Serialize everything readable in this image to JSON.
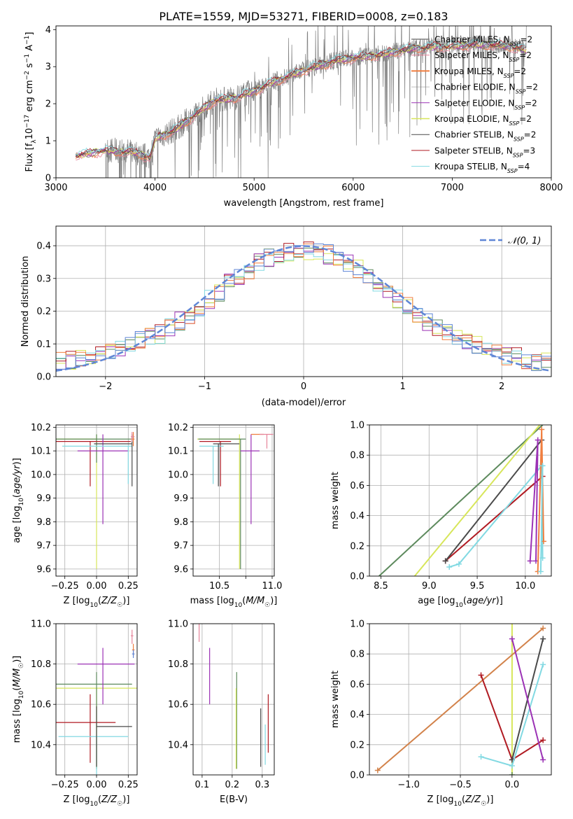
{
  "title": "PLATE=1559, MJD=53271, FIBERID=0008, z=0.183",
  "colors": {
    "gray": "#808080",
    "orange": "#f07e3f",
    "pink": "#e6849a",
    "purple": "#9b32b5",
    "yellowgreen": "#d7e65a",
    "darkgray": "#4a4a4a",
    "darkred": "#b01a22",
    "cyan": "#82d9e2",
    "green": "#5d8a5d",
    "blue": "#5f86d6",
    "darkorange": "#d2824a"
  },
  "chart_data": [
    {
      "id": "spectrum",
      "type": "line",
      "xlabel": "wavelength [Angstrom, rest frame]",
      "ylabel": "Flux [f_λ 10^-17 erg cm^-2 s^-1 A^-1]",
      "xlim": [
        3000,
        8000
      ],
      "ylim": [
        0,
        4.1
      ],
      "xticks": [
        3000,
        4000,
        5000,
        6000,
        7000,
        8000
      ],
      "yticks": [
        0,
        1,
        2,
        3,
        4
      ],
      "grid": false,
      "legend_position": "right",
      "data_trend": {
        "x": [
          3200,
          3500,
          3800,
          3950,
          4000,
          4200,
          4400,
          4600,
          4800,
          5000,
          5200,
          5400,
          5600,
          5800,
          6000,
          6200,
          6400,
          6600,
          6800,
          7000,
          7200,
          7400,
          7600,
          7750
        ],
        "y": [
          0.6,
          0.75,
          0.7,
          0.55,
          1.05,
          1.3,
          1.7,
          2.1,
          2.15,
          2.35,
          2.6,
          2.8,
          3.0,
          3.15,
          3.25,
          3.3,
          3.4,
          3.5,
          3.55,
          3.55,
          3.6,
          3.6,
          3.55,
          3.45
        ]
      },
      "series": [
        {
          "name": "Chabrier MILES",
          "nssp": "2",
          "color": "#808080",
          "width": 1.5
        },
        {
          "name": "Salpeter MILES",
          "nssp": "2",
          "color": "#e6849a",
          "width": 1
        },
        {
          "name": "Kroupa MILES",
          "nssp": "2",
          "color": "#f07e3f",
          "width": 2
        },
        {
          "name": "Chabrier ELODIE",
          "nssp": "2",
          "color": "#808080",
          "width": 0.5
        },
        {
          "name": "Salpeter ELODIE",
          "nssp": "2",
          "color": "#9b32b5",
          "width": 1
        },
        {
          "name": "Kroupa ELODIE",
          "nssp": "2",
          "color": "#d7e65a",
          "width": 1.5
        },
        {
          "name": "Chabrier STELIB",
          "nssp": "2",
          "color": "#4a4a4a",
          "width": 1
        },
        {
          "name": "Salpeter STELIB",
          "nssp": "3",
          "color": "#b01a22",
          "width": 1
        },
        {
          "name": "Kroupa STELIB",
          "nssp": "4",
          "color": "#82d9e2",
          "width": 1
        }
      ]
    },
    {
      "id": "residual-histogram",
      "type": "line",
      "xlabel": "(data-model)/error",
      "ylabel": "Normed distribution",
      "xlim": [
        -2.5,
        2.5
      ],
      "ylim": [
        0,
        0.46
      ],
      "xticks": [
        -2,
        -1,
        0,
        1,
        2
      ],
      "yticks": [
        0.0,
        0.1,
        0.2,
        0.3,
        0.4
      ],
      "grid": true,
      "legend_position": "top-right",
      "legend_label": "𝒩(0, 1)",
      "gaussian": {
        "mean": 0,
        "sigma": 1,
        "color": "#5f86d6"
      },
      "hist_bin_edges_from": -2.5,
      "hist_bin_width": 0.1,
      "hist_series_colors": [
        "#5d8a5d",
        "#d7e65a",
        "#9b32b5",
        "#b01a22",
        "#82d9e2",
        "#f07e3f",
        "#5f86d6"
      ]
    },
    {
      "id": "age-vs-z",
      "type": "scatter",
      "xlabel": "Z [log10(Z/Z☉)]",
      "ylabel": "age  [log10(age/yr)]",
      "xlim": [
        -0.32,
        0.32
      ],
      "ylim": [
        9.57,
        10.21
      ],
      "xticks": [
        -0.25,
        0.0,
        0.25
      ],
      "yticks": [
        9.6,
        9.7,
        9.8,
        9.9,
        10.0,
        10.1,
        10.2
      ],
      "grid": true,
      "points": [
        {
          "x": 0.0,
          "y": 10.15,
          "xerr": [
            0.32,
            0.0
          ],
          "yerr": [
            0.55,
            0.02
          ],
          "color": "#d7e65a"
        },
        {
          "x": 0.0,
          "y": 10.15,
          "xerr": [
            0.32,
            0.28
          ],
          "yerr": [
            0.1,
            0.02
          ],
          "color": "#5d8a5d"
        },
        {
          "x": -0.05,
          "y": 10.14,
          "xerr": [
            0.27,
            0.32
          ],
          "yerr": [
            0.19,
            0.0
          ],
          "color": "#b01a22"
        },
        {
          "x": 0.05,
          "y": 10.1,
          "xerr": [
            0.2,
            0.2
          ],
          "yerr": [
            0.31,
            0.07
          ],
          "color": "#9b32b5"
        },
        {
          "x": 0.25,
          "y": 10.12,
          "xerr": [
            0.52,
            0.03
          ],
          "yerr": [
            0.16,
            0.0
          ],
          "color": "#82d9e2"
        },
        {
          "x": 0.28,
          "y": 10.13,
          "xerr": [
            0.3,
            0.0
          ],
          "yerr": [
            0.18,
            0.04
          ],
          "color": "#4a4a4a"
        },
        {
          "x": 0.29,
          "y": 10.15,
          "xerr": [
            0.02,
            0.01
          ],
          "yerr": [
            0.03,
            0.03
          ],
          "color": "#f07e3f"
        },
        {
          "x": 0.28,
          "y": 10.16,
          "xerr": [
            0.01,
            0.02
          ],
          "yerr": [
            0.02,
            0.02
          ],
          "color": "#e6849a"
        }
      ]
    },
    {
      "id": "age-vs-mass",
      "type": "scatter",
      "xlabel": "mass [log10(M/M☉)]",
      "ylabel": "",
      "xlim": [
        10.25,
        11.02
      ],
      "ylim": [
        9.57,
        10.21
      ],
      "xticks": [
        10.5,
        10.75,
        11.0
      ],
      "xtick_labels": [
        "10.5",
        "",
        "11.0"
      ],
      "yticks": [
        9.6,
        9.7,
        9.8,
        9.9,
        10.0,
        10.1,
        10.2
      ],
      "grid": true,
      "points": [
        {
          "x": 10.69,
          "y": 10.15,
          "xerr": [
            0.4,
            0.0
          ],
          "yerr": [
            0.55,
            0.02
          ],
          "color": "#d7e65a"
        },
        {
          "x": 10.7,
          "y": 10.15,
          "xerr": [
            0.4,
            0.05
          ],
          "yerr": [
            0.55,
            0.0
          ],
          "color": "#5d8a5d"
        },
        {
          "x": 10.51,
          "y": 10.14,
          "xerr": [
            0.2,
            0.1
          ],
          "yerr": [
            0.19,
            0.0
          ],
          "color": "#b01a22"
        },
        {
          "x": 10.8,
          "y": 10.1,
          "xerr": [
            0.1,
            0.08
          ],
          "yerr": [
            0.31,
            0.07
          ],
          "color": "#9b32b5"
        },
        {
          "x": 10.44,
          "y": 10.12,
          "xerr": [
            0.13,
            0.1
          ],
          "yerr": [
            0.16,
            0.0
          ],
          "color": "#82d9e2"
        },
        {
          "x": 10.49,
          "y": 10.13,
          "xerr": [
            0.05,
            0.2
          ],
          "yerr": [
            0.18,
            0.0
          ],
          "color": "#4a4a4a"
        },
        {
          "x": 10.87,
          "y": 10.17,
          "xerr": [
            0.07,
            0.05
          ],
          "yerr": [
            0.0,
            0.0
          ],
          "color": "#f07e3f"
        },
        {
          "x": 10.95,
          "y": 10.17,
          "xerr": [
            0.07,
            0.06
          ],
          "yerr": [
            0.06,
            0.0
          ],
          "color": "#e6849a"
        }
      ]
    },
    {
      "id": "mass-weight-vs-age",
      "type": "line",
      "xlabel": "age  [log10(age/yr)]",
      "ylabel": "mass weight",
      "xlim": [
        8.38,
        10.27
      ],
      "ylim": [
        0,
        1.0
      ],
      "xticks": [
        8.5,
        9.0,
        9.5,
        10.0
      ],
      "yticks": [
        0.0,
        0.2,
        0.4,
        0.6,
        0.8,
        1.0
      ],
      "grid": true,
      "series": [
        {
          "color": "#5d8a5d",
          "x": [
            8.48,
            10.18
          ],
          "y": [
            0.0,
            1.0
          ],
          "markers": false
        },
        {
          "color": "#d7e65a",
          "x": [
            8.85,
            10.15
          ],
          "y": [
            0.0,
            1.0
          ],
          "markers": false
        },
        {
          "color": "#b01a22",
          "x": [
            9.17,
            10.18
          ],
          "y": [
            0.1,
            0.66
          ],
          "markers": true
        },
        {
          "color": "#4a4a4a",
          "x": [
            9.17,
            10.17
          ],
          "y": [
            0.1,
            0.9
          ],
          "markers": true
        },
        {
          "color": "#82d9e2",
          "x": [
            9.21,
            9.31,
            10.17,
            10.18
          ],
          "y": [
            0.06,
            0.08,
            0.73,
            0.12
          ],
          "markers": true
        },
        {
          "color": "#9b32b5",
          "x": [
            10.05,
            10.13,
            10.11
          ],
          "y": [
            0.1,
            0.9,
            0.1
          ],
          "markers": true
        },
        {
          "color": "#f07e3f",
          "x": [
            10.13,
            10.17,
            10.19
          ],
          "y": [
            0.03,
            0.97,
            0.23
          ],
          "markers": true
        },
        {
          "color": "#82d9e2",
          "x": [
            10.18,
            10.16
          ],
          "y": [
            0.73,
            0.03
          ],
          "markers": true
        }
      ]
    },
    {
      "id": "mass-vs-z",
      "type": "scatter",
      "xlabel": "Z [log10(Z/Z☉)]",
      "ylabel": "mass [log10(M/M☉)]",
      "xlim": [
        -0.32,
        0.32
      ],
      "ylim": [
        10.25,
        11.0
      ],
      "xticks": [
        -0.25,
        0.0,
        0.25
      ],
      "yticks": [
        10.4,
        10.6,
        10.8,
        11.0
      ],
      "grid": true,
      "points": [
        {
          "x": 0.0,
          "y": 10.68,
          "xerr": [
            0.32,
            0.32
          ],
          "yerr": [
            0.4,
            0.0
          ],
          "color": "#d7e65a"
        },
        {
          "x": 0.0,
          "y": 10.7,
          "xerr": [
            0.32,
            0.28
          ],
          "yerr": [
            0.42,
            0.06
          ],
          "color": "#5d8a5d"
        },
        {
          "x": -0.05,
          "y": 10.51,
          "xerr": [
            0.27,
            0.2
          ],
          "yerr": [
            0.2,
            0.14
          ],
          "color": "#b01a22"
        },
        {
          "x": 0.05,
          "y": 10.8,
          "xerr": [
            0.2,
            0.25
          ],
          "yerr": [
            0.2,
            0.08
          ],
          "color": "#9b32b5"
        },
        {
          "x": 0.0,
          "y": 10.44,
          "xerr": [
            0.3,
            0.25
          ],
          "yerr": [
            0.2,
            0.0
          ],
          "color": "#82d9e2"
        },
        {
          "x": 0.0,
          "y": 10.49,
          "xerr": [
            0.0,
            0.28
          ],
          "yerr": [
            0.2,
            0.1
          ],
          "color": "#4a4a4a"
        },
        {
          "x": 0.29,
          "y": 10.87,
          "xerr": [
            0.01,
            0.01
          ],
          "yerr": [
            0.03,
            0.03
          ],
          "color": "#f07e3f"
        },
        {
          "x": 0.28,
          "y": 10.94,
          "xerr": [
            0.01,
            0.01
          ],
          "yerr": [
            0.04,
            0.03
          ],
          "color": "#e6849a"
        },
        {
          "x": 0.29,
          "y": 10.85,
          "xerr": [
            0.01,
            0.01
          ],
          "yerr": [
            0.02,
            0.02
          ],
          "color": "#5f86d6"
        }
      ]
    },
    {
      "id": "mass-vs-ebv",
      "type": "scatter",
      "xlabel": "E(B-V)",
      "ylabel": "",
      "xlim": [
        0.07,
        0.34
      ],
      "ylim": [
        10.25,
        11.0
      ],
      "xticks": [
        0.1,
        0.2,
        0.3
      ],
      "yticks": [
        10.4,
        10.6,
        10.8,
        11.0
      ],
      "grid": true,
      "points": [
        {
          "x": 0.09,
          "y": 10.95,
          "yerr": [
            0.04,
            0.05
          ],
          "color": "#e6849a"
        },
        {
          "x": 0.125,
          "y": 10.8,
          "yerr": [
            0.2,
            0.08
          ],
          "color": "#9b32b5"
        },
        {
          "x": 0.215,
          "y": 10.7,
          "yerr": [
            0.42,
            0.06
          ],
          "color": "#5d8a5d"
        },
        {
          "x": 0.213,
          "y": 10.68,
          "yerr": [
            0.4,
            0.0
          ],
          "color": "#d7e65a"
        },
        {
          "x": 0.295,
          "y": 10.49,
          "yerr": [
            0.2,
            0.09
          ],
          "color": "#4a4a4a"
        },
        {
          "x": 0.31,
          "y": 10.4,
          "yerr": [
            0.1,
            0.1
          ],
          "color": "#82d9e2"
        },
        {
          "x": 0.32,
          "y": 10.51,
          "yerr": [
            0.15,
            0.14
          ],
          "color": "#b01a22"
        }
      ]
    },
    {
      "id": "mass-weight-vs-z",
      "type": "line",
      "xlabel": "Z [log10(Z/Z☉)]",
      "ylabel": "mass weight",
      "xlim": [
        -1.38,
        0.38
      ],
      "ylim": [
        0,
        1.0
      ],
      "xticks": [
        -1.0,
        -0.5,
        0.0
      ],
      "yticks": [
        0.0,
        0.2,
        0.4,
        0.6,
        0.8,
        1.0
      ],
      "grid": true,
      "series": [
        {
          "color": "#d7e65a",
          "x": [
            0.0,
            0.0
          ],
          "y": [
            0.0,
            1.0
          ],
          "markers": false
        },
        {
          "color": "#d2824a",
          "x": [
            -1.3,
            0.3
          ],
          "y": [
            0.03,
            0.97
          ],
          "markers": true
        },
        {
          "color": "#b01a22",
          "x": [
            -0.3,
            0.0,
            0.3
          ],
          "y": [
            0.66,
            0.1,
            0.23
          ],
          "markers": true
        },
        {
          "color": "#4a4a4a",
          "x": [
            0.0,
            0.3
          ],
          "y": [
            0.1,
            0.9
          ],
          "markers": true
        },
        {
          "color": "#82d9e2",
          "x": [
            -0.3,
            0.0,
            0.3
          ],
          "y": [
            0.12,
            0.06,
            0.73
          ],
          "markers": true
        },
        {
          "color": "#9b32b5",
          "x": [
            0.0,
            0.3
          ],
          "y": [
            0.9,
            0.1
          ],
          "markers": true
        },
        {
          "color": "#5d8a5d",
          "x": [
            0.0
          ],
          "y": [
            0.0
          ],
          "markers": true
        }
      ]
    }
  ]
}
